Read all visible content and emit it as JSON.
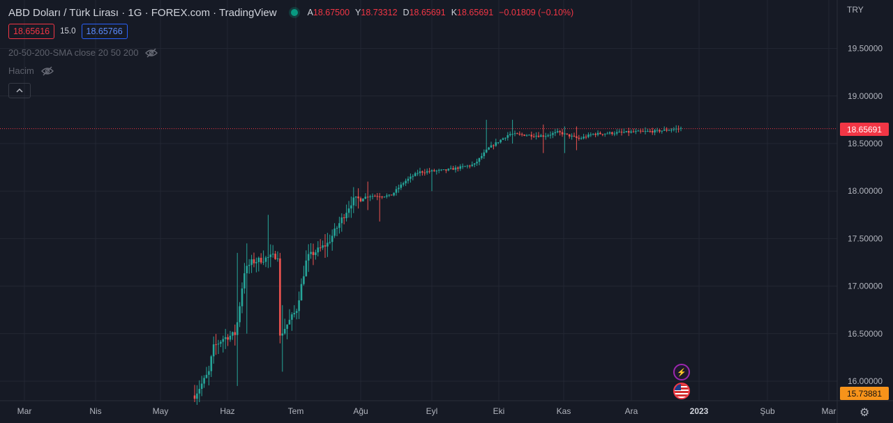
{
  "header": {
    "title": "ABD Doları / Türk Lirası · 1G · FOREX.com · TradingView",
    "ohlc": [
      {
        "k": "A",
        "v": "18.67500"
      },
      {
        "k": "Y",
        "v": "18.73312"
      },
      {
        "k": "D",
        "v": "18.65691"
      },
      {
        "k": "K",
        "v": "18.65691"
      }
    ],
    "change": "−0.01809 (−0.10%)"
  },
  "trade": {
    "sell": "18.65616",
    "spread": "15.0",
    "buy": "18.65766"
  },
  "indicators": {
    "sma": "20-50-200-SMA close 20 50 200",
    "volume": "Hacim"
  },
  "axis": {
    "currency": "TRY",
    "current_price": "18.65691",
    "low_price": "15.73881"
  },
  "colors": {
    "up": "#26a69a",
    "down": "#ef5350",
    "background": "#161a25",
    "grid": "#232733",
    "current_line": "#f23645"
  },
  "icons": [
    "eye-off-icon",
    "chevron-up-icon",
    "gear-icon",
    "flash-icon",
    "us-flag-icon"
  ],
  "chart_data": {
    "type": "candlestick",
    "series_name": "USD/TRY",
    "ylim": [
      15.75,
      19.9
    ],
    "xlabels": [
      "Mar",
      "Nis",
      "May",
      "Haz",
      "Tem",
      "Ağu",
      "Eyl",
      "Eki",
      "Kas",
      "Ara",
      "2023",
      "Şub",
      "Mar"
    ],
    "yticks": [
      "16.00000",
      "16.50000",
      "17.00000",
      "17.50000",
      "18.00000",
      "18.50000",
      "19.00000",
      "19.50000"
    ],
    "current_value": 18.65691,
    "grid": true,
    "monthly_path": [
      {
        "month": "Haz",
        "open": 15.87,
        "high": 17.75,
        "low": 15.75,
        "close": 17.32
      },
      {
        "month": "Tem",
        "open": 16.55,
        "high": 17.5,
        "low": 16.1,
        "close": 17.4
      },
      {
        "month": "Ağu",
        "open": 17.8,
        "high": 18.1,
        "low": 17.65,
        "close": 17.95
      },
      {
        "month": "Eyl",
        "open": 18.1,
        "high": 18.3,
        "low": 18.05,
        "close": 18.3
      },
      {
        "month": "Eki",
        "open": 18.5,
        "high": 18.75,
        "low": 18.45,
        "close": 18.6
      },
      {
        "month": "Kas",
        "open": 18.6,
        "high": 18.72,
        "low": 18.4,
        "close": 18.63
      },
      {
        "month": "Ara",
        "open": 18.63,
        "high": 18.73,
        "low": 18.55,
        "close": 18.66
      }
    ]
  }
}
